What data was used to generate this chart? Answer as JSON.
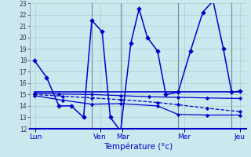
{
  "background_color": "#cce8ef",
  "grid_color": "#aacccc",
  "line_color": "#0000cc",
  "ylim": [
    12,
    23
  ],
  "yticks": [
    12,
    13,
    14,
    15,
    16,
    17,
    18,
    19,
    20,
    21,
    22,
    23
  ],
  "xlabel": "Température (°c)",
  "day_labels": [
    "Lun",
    "Ven",
    "Mar",
    "Mer",
    "Jeu"
  ],
  "day_x": [
    0.5,
    32,
    43,
    73,
    100
  ],
  "vline_positions": [
    28,
    42,
    70,
    96
  ],
  "series": [
    {
      "x": [
        0,
        6,
        12,
        18,
        24,
        28,
        33,
        37,
        42,
        47,
        51,
        55,
        60,
        64,
        70,
        76,
        82,
        87,
        92,
        96,
        100
      ],
      "y": [
        18,
        16.5,
        14,
        14,
        13,
        21.5,
        20.5,
        13,
        11.8,
        19.5,
        22.5,
        20,
        18.8,
        15,
        15.2,
        18.8,
        22.2,
        23.2,
        19,
        15.2,
        15.3
      ],
      "lw": 1.1,
      "ls": "-",
      "marker": "D",
      "ms": 2.8
    },
    {
      "x": [
        0,
        100
      ],
      "y": [
        15.2,
        15.2
      ],
      "lw": 1.2,
      "ls": "-",
      "marker": null,
      "ms": 0
    },
    {
      "x": [
        0,
        12,
        28,
        42,
        56,
        70,
        84,
        100
      ],
      "y": [
        15.1,
        15.05,
        15.0,
        14.9,
        14.8,
        14.75,
        14.7,
        14.65
      ],
      "lw": 0.9,
      "ls": "-",
      "marker": "D",
      "ms": 2.2
    },
    {
      "x": [
        0,
        14,
        28,
        42,
        60,
        70,
        84,
        100
      ],
      "y": [
        15.0,
        14.85,
        14.7,
        14.55,
        14.3,
        14.1,
        13.8,
        13.5
      ],
      "lw": 0.9,
      "ls": "--",
      "marker": "D",
      "ms": 2.2
    },
    {
      "x": [
        0,
        14,
        28,
        42,
        60,
        70,
        84,
        100
      ],
      "y": [
        14.9,
        14.5,
        14.15,
        14.2,
        14.0,
        13.25,
        13.2,
        13.2
      ],
      "lw": 0.9,
      "ls": "-",
      "marker": "D",
      "ms": 2.2
    }
  ]
}
